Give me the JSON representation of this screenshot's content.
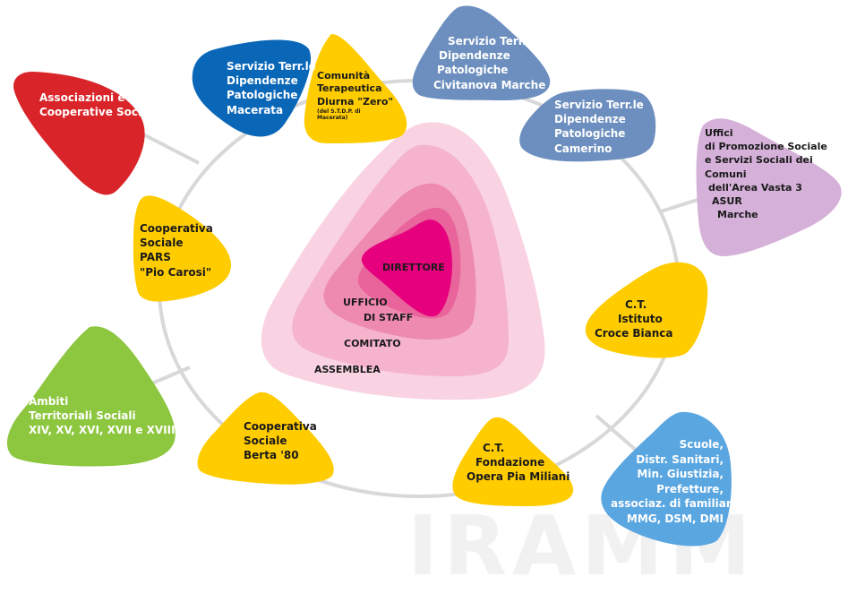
{
  "watermark": "IRAMM",
  "colors": {
    "ring": "#d8d8d8",
    "red": "#d9252a",
    "blue_dark": "#0a67b8",
    "blue_grey": "#6d8fbf",
    "yellow": "#ffcc00",
    "green": "#8dc63f",
    "lilac": "#d5b0d9",
    "light_blue": "#5aa6e0",
    "pink_1": "#f9d3e2",
    "pink_2": "#f5b3cc",
    "pink_3": "#ee8ab0",
    "pink_4": "#e8649a",
    "magenta": "#e6007e"
  },
  "core": {
    "direttore": "DIRETTORE",
    "ufficio_line1": "UFFICIO",
    "ufficio_line2": "DI STAFF",
    "comitato": "COMITATO",
    "assemblea": "ASSEMBLEA"
  },
  "nodes": {
    "associazioni": [
      "Associazioni e",
      "Cooperative Sociali"
    ],
    "serd_macerata": [
      "Servizio Terr.le",
      "Dipendenze",
      "Patologiche",
      "Macerata"
    ],
    "comunita_zero": [
      "Comunità",
      "Terapeutica",
      "Diurna \"Zero\""
    ],
    "comunita_zero_note": [
      "(del S.T.D.P. di",
      "Macerata)"
    ],
    "serd_civitanova": [
      "Servizio Terr.le",
      "Dipendenze",
      "Patologiche",
      "Civitanova Marche"
    ],
    "serd_camerino": [
      "Servizio Terr.le",
      "Dipendenze",
      "Patologiche",
      "Camerino"
    ],
    "uffici": [
      "Uffici",
      "di Promozione Sociale",
      "e Servizi Sociali dei",
      "Comuni",
      "dell'Area Vasta 3",
      "ASUR",
      "Marche"
    ],
    "pars": [
      "Cooperativa",
      "Sociale",
      "PARS",
      "\"Pio Carosi\""
    ],
    "croce_bianca": [
      "C.T.",
      "Istituto",
      "Croce Bianca"
    ],
    "ambiti": [
      "Ambiti",
      "Territoriali Sociali",
      "XIV, XV, XVI, XVII e XVIII"
    ],
    "berta": [
      "Cooperativa",
      "Sociale",
      "Berta '80"
    ],
    "opera_pia": [
      "C.T.",
      "Fondazione",
      "Opera Pia Miliani"
    ],
    "scuole": [
      "Scuole,",
      "Distr. Sanitari,",
      "Min. Giustizia,",
      "Prefetture,",
      "associaz. di familiari,",
      "MMG, DSM, DMI"
    ]
  }
}
